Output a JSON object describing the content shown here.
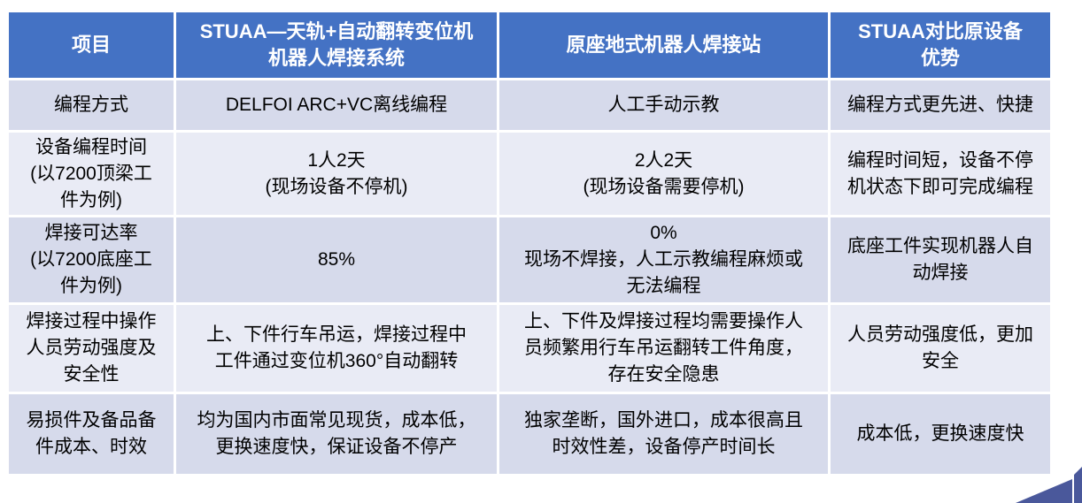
{
  "table": {
    "columns": [
      {
        "label": "项目"
      },
      {
        "label": "STUAA—天轨+自动翻转变位机\n机器人焊接系统"
      },
      {
        "label": "原座地式机器人焊接站"
      },
      {
        "label": "STUAA对比原设备\n优势"
      }
    ],
    "rows": [
      {
        "cells": [
          "编程方式",
          "DELFOI ARC+VC离线编程",
          "人工手动示教",
          "编程方式更先进、快捷"
        ]
      },
      {
        "cells": [
          "设备编程时间\n(以7200顶梁工\n件为例)",
          "1人2天\n(现场设备不停机)",
          "2人2天\n(现场设备需要停机)",
          "编程时间短，设备不停\n机状态下即可完成编程"
        ]
      },
      {
        "cells": [
          "焊接可达率\n(以7200底座工\n件为例)",
          "85%",
          "0%\n现场不焊接，人工示教编程麻烦或\n无法编程",
          "底座工件实现机器人自\n动焊接"
        ]
      },
      {
        "cells": [
          "焊接过程中操作\n人员劳动强度及\n安全性",
          "上、下件行车吊运，焊接过程中\n工件通过变位机360°自动翻转",
          "上、下件及焊接过程均需要操作人\n员频繁用行车吊运翻转工件角度，\n存在安全隐患",
          "人员劳动强度低，更加\n安全"
        ]
      },
      {
        "cells": [
          "易损件及备品备\n件成本、时效",
          "均为国内市面常见现货，成本低，\n更换速度快，保证设备不停产",
          "独家垄断，国外进口，成本很高且\n时效性差，设备停产时间长",
          "成本低，更换速度快"
        ]
      }
    ]
  },
  "colors": {
    "header_bg": "#4472C4",
    "header_text": "#FFFFFF",
    "row_band_dark": "#D6DAEB",
    "row_band_light": "#E9EBF5",
    "body_text": "#000000",
    "corner_decoration": "#4A589B",
    "cell_gap": "#FFFFFF"
  }
}
